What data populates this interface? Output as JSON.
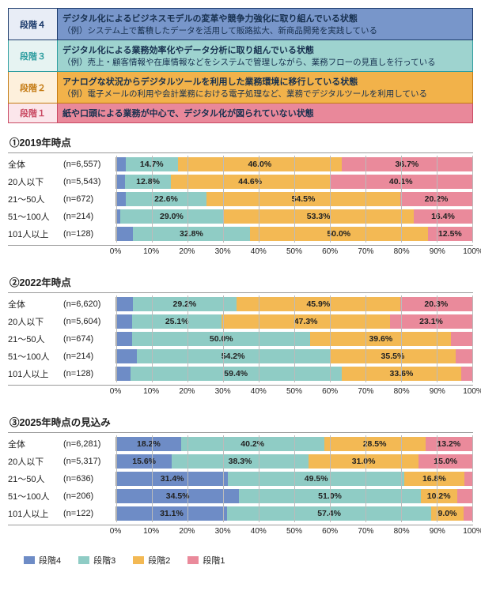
{
  "colors": {
    "stage4_border": "#1b3a6b",
    "stage4_bg": "#7896ca",
    "stage4_label_bg": "#e8edf6",
    "stage3_border": "#2f9ea0",
    "stage3_bg": "#9ed3cf",
    "stage3_label_bg": "#e6f3f2",
    "stage2_border": "#c47a13",
    "stage2_bg": "#f2b24a",
    "stage2_label_bg": "#fdf0dc",
    "stage1_border": "#c94a63",
    "stage1_bg": "#e9889a",
    "stage1_label_bg": "#fbe6eb",
    "bar_stage4": "#6e8cc6",
    "bar_stage3": "#8fccc5",
    "bar_stage2": "#f3b954",
    "bar_stage1": "#ea8a9b",
    "text": "#222222"
  },
  "stages": [
    {
      "key": "stage4",
      "label": "段階４",
      "title": "デジタル化によるビジネスモデルの変革や競争力強化に取り組んでいる状態",
      "example": "（例）システム上で蓄積したデータを活用して販路拡大、新商品開発を実践している"
    },
    {
      "key": "stage3",
      "label": "段階３",
      "title": "デジタル化による業務効率化やデータ分析に取り組んでいる状態",
      "example": "（例）売上・顧客情報や在庫情報などをシステムで管理しながら、業務フローの見直しを行っている"
    },
    {
      "key": "stage2",
      "label": "段階２",
      "title": "アナログな状況からデジタルツールを利用した業務環境に移行している状態",
      "example": "（例）電子メールの利用や会計業務における電子処理など、業務でデジタルツールを利用している"
    },
    {
      "key": "stage1",
      "label": "段階１",
      "title": "紙や口頭による業務が中心で、デジタル化が図られていない状態",
      "example": ""
    }
  ],
  "axis": {
    "min": 0,
    "max": 100,
    "step": 10,
    "unit": "%"
  },
  "charts": [
    {
      "title": "①2019年時点",
      "rows": [
        {
          "cat": "全体",
          "n": "(n=6,557)",
          "segs": [
            2.6,
            14.7,
            46.0,
            36.7
          ],
          "labels": [
            "",
            "14.7%",
            "46.0%",
            "36.7%"
          ]
        },
        {
          "cat": "20人以下",
          "n": "(n=5,543)",
          "segs": [
            2.5,
            12.8,
            44.6,
            40.1
          ],
          "labels": [
            "",
            "12.8%",
            "44.6%",
            "40.1%"
          ]
        },
        {
          "cat": "21～50人",
          "n": "(n=672)",
          "segs": [
            2.7,
            22.6,
            54.5,
            20.2
          ],
          "labels": [
            "",
            "22.6%",
            "54.5%",
            "20.2%"
          ]
        },
        {
          "cat": "51～100人",
          "n": "(n=214)",
          "segs": [
            1.0,
            29.0,
            53.3,
            16.4
          ],
          "labels": [
            "",
            "29.0%",
            "53.3%",
            "16.4%"
          ]
        },
        {
          "cat": "101人以上",
          "n": "(n=128)",
          "segs": [
            4.7,
            32.8,
            50.0,
            12.5
          ],
          "labels": [
            "",
            "32.8%",
            "50.0%",
            "12.5%"
          ]
        }
      ]
    },
    {
      "title": "②2022年時点",
      "rows": [
        {
          "cat": "全体",
          "n": "(n=6,620)",
          "segs": [
            4.6,
            29.2,
            45.9,
            20.3
          ],
          "labels": [
            "",
            "29.2%",
            "45.9%",
            "20.3%"
          ]
        },
        {
          "cat": "20人以下",
          "n": "(n=5,604)",
          "segs": [
            4.5,
            25.1,
            47.3,
            23.1
          ],
          "labels": [
            "",
            "25.1%",
            "47.3%",
            "23.1%"
          ]
        },
        {
          "cat": "21～50人",
          "n": "(n=674)",
          "segs": [
            4.5,
            50.0,
            39.6,
            5.9
          ],
          "labels": [
            "",
            "50.0%",
            "39.6%",
            ""
          ]
        },
        {
          "cat": "51～100人",
          "n": "(n=214)",
          "segs": [
            5.7,
            54.2,
            35.5,
            4.6
          ],
          "labels": [
            "",
            "54.2%",
            "35.5%",
            ""
          ]
        },
        {
          "cat": "101人以上",
          "n": "(n=128)",
          "segs": [
            3.9,
            59.4,
            33.6,
            3.1
          ],
          "labels": [
            "",
            "59.4%",
            "33.6%",
            ""
          ]
        }
      ]
    },
    {
      "title": "③2025年時点の見込み",
      "rows": [
        {
          "cat": "全体",
          "n": "(n=6,281)",
          "segs": [
            18.2,
            40.2,
            28.5,
            13.2
          ],
          "labels": [
            "18.2%",
            "40.2%",
            "28.5%",
            "13.2%"
          ]
        },
        {
          "cat": "20人以下",
          "n": "(n=5,317)",
          "segs": [
            15.6,
            38.3,
            31.0,
            15.0
          ],
          "labels": [
            "15.6%",
            "38.3%",
            "31.0%",
            "15.0%"
          ]
        },
        {
          "cat": "21～50人",
          "n": "(n=636)",
          "segs": [
            31.4,
            49.5,
            16.8,
            2.3
          ],
          "labels": [
            "31.4%",
            "49.5%",
            "16.8%",
            ""
          ]
        },
        {
          "cat": "51～100人",
          "n": "(n=206)",
          "segs": [
            34.5,
            51.0,
            10.2,
            4.3
          ],
          "labels": [
            "34.5%",
            "51.0%",
            "10.2%",
            ""
          ]
        },
        {
          "cat": "101人以上",
          "n": "(n=122)",
          "segs": [
            31.1,
            57.4,
            9.0,
            2.5
          ],
          "labels": [
            "31.1%",
            "57.4%",
            "9.0%",
            ""
          ]
        }
      ]
    }
  ],
  "legend": [
    {
      "label": "段階4",
      "color_key": "bar_stage4"
    },
    {
      "label": "段階3",
      "color_key": "bar_stage3"
    },
    {
      "label": "段階2",
      "color_key": "bar_stage2"
    },
    {
      "label": "段階1",
      "color_key": "bar_stage1"
    }
  ]
}
